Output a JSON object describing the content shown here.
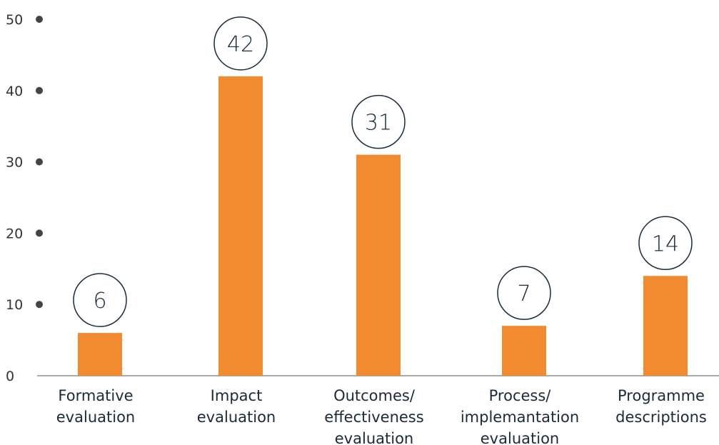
{
  "chart_data": {
    "type": "bar",
    "title": "",
    "xlabel": "",
    "ylabel": "",
    "ylim": [
      0,
      50
    ],
    "yticks": [
      0,
      10,
      20,
      30,
      40,
      50
    ],
    "grid": false,
    "categories": [
      [
        "Formative",
        "evaluation"
      ],
      [
        "Impact",
        "evaluation"
      ],
      [
        "Outcomes/",
        "effectiveness",
        "evaluation"
      ],
      [
        "Process/",
        "implemantation",
        "evaluation"
      ],
      [
        "Programme",
        "descriptions"
      ]
    ],
    "values": [
      6,
      42,
      31,
      7,
      14
    ],
    "data_labels": [
      "6",
      "42",
      "31",
      "7",
      "14"
    ],
    "colors": {
      "bar": "#f28b30",
      "label_circle_stroke": "#1b2a3a",
      "axis": "#555555",
      "tick_dot": "#444444"
    }
  }
}
